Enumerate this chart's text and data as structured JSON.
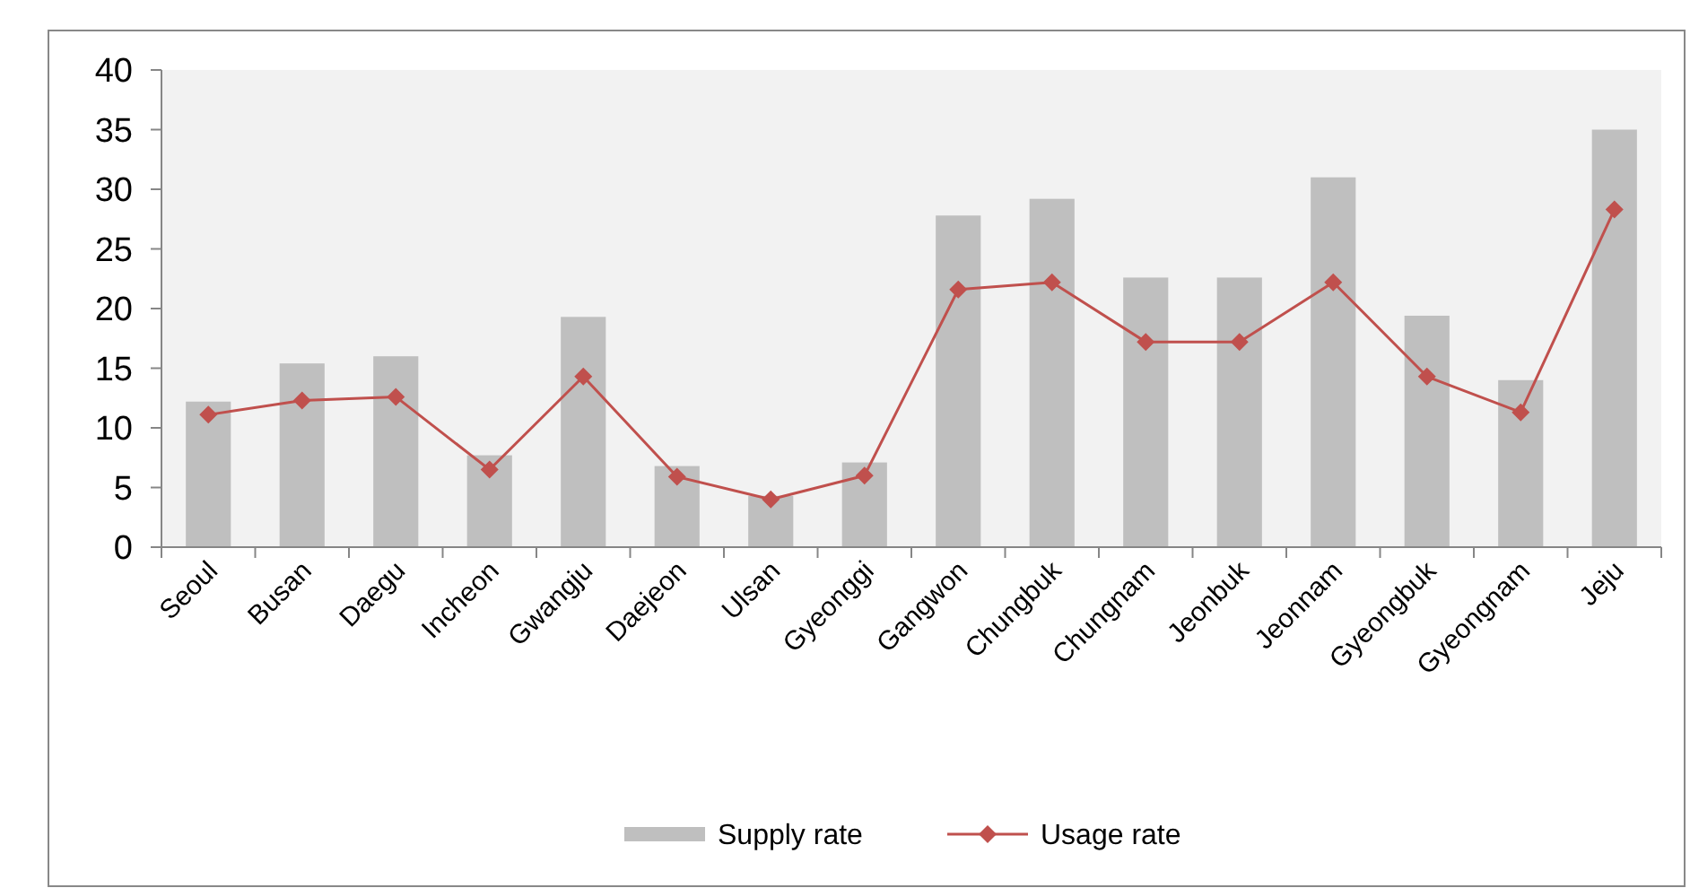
{
  "chart_data": {
    "type": "bar",
    "categories": [
      "Seoul",
      "Busan",
      "Daegu",
      "Incheon",
      "Gwangju",
      "Daejeon",
      "Ulsan",
      "Gyeonggi",
      "Gangwon",
      "Chungbuk",
      "Chungnam",
      "Jeonbuk",
      "Jeonnam",
      "Gyeongbuk",
      "Gyeongnam",
      "Jeju"
    ],
    "series": [
      {
        "name": "Supply rate",
        "color": "#bfbfbf",
        "values": [
          12.2,
          15.4,
          16,
          7.7,
          19.3,
          6.8,
          4.3,
          7.1,
          27.8,
          29.2,
          22.6,
          22.6,
          31,
          19.4,
          14,
          35
        ]
      },
      {
        "name": "Usage rate",
        "type": "line",
        "color": "#c0504d",
        "marker": "diamond",
        "values": [
          11.1,
          12.3,
          12.6,
          6.5,
          14.3,
          5.9,
          4,
          6,
          21.6,
          22.2,
          17.2,
          17.2,
          22.2,
          14.3,
          11.3,
          28.3
        ]
      }
    ],
    "ylim": [
      0,
      40
    ],
    "yticks": [
      0,
      5,
      10,
      15,
      20,
      25,
      30,
      35,
      40
    ],
    "grid": false,
    "legend": "bottom"
  }
}
